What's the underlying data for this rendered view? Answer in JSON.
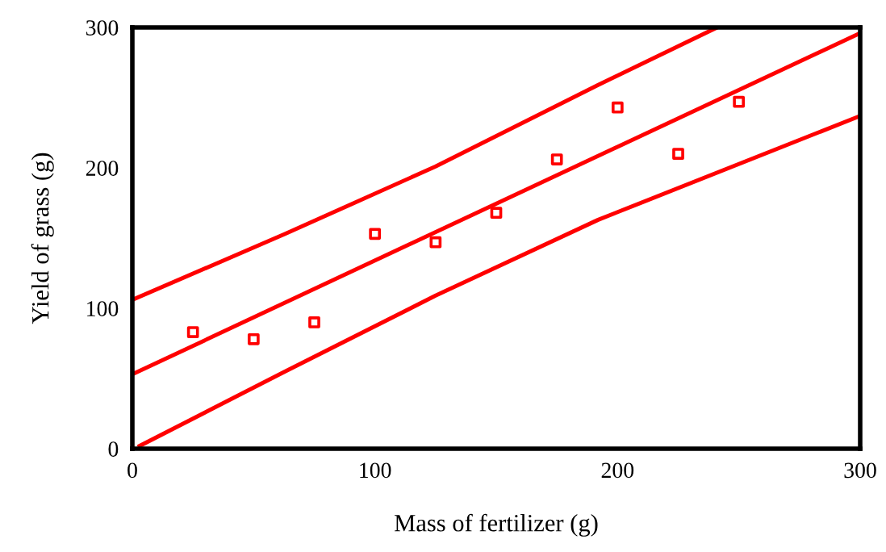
{
  "chart_data": {
    "type": "scatter",
    "xlabel": "Mass of fertilizer (g)",
    "ylabel": "Yield of grass (g)",
    "xlim": [
      0,
      300
    ],
    "ylim": [
      0,
      300
    ],
    "xticks": [
      0,
      100,
      200,
      300
    ],
    "yticks": [
      0,
      100,
      200,
      300
    ],
    "grid": false,
    "series": [
      {
        "marker": "square",
        "color": "#ff0000",
        "x": [
          25,
          50,
          75,
          100,
          125,
          150,
          175,
          200,
          225,
          250
        ],
        "values": [
          83,
          78,
          90,
          153,
          147,
          168,
          206,
          243,
          210,
          247
        ]
      },
      {
        "type": "line",
        "marker": "none",
        "color": "#ff0000",
        "x": [
          0,
          300
        ],
        "values": [
          53,
          296
        ]
      },
      {
        "type": "line",
        "marker": "none",
        "color": "#ff0000",
        "x": [
          0,
          63,
          125,
          192,
          241
        ],
        "values": [
          106,
          153,
          201,
          259,
          300
        ]
      },
      {
        "type": "line",
        "marker": "none",
        "color": "#ff0000",
        "x": [
          3,
          63,
          125,
          192,
          300
        ],
        "values": [
          2,
          55,
          109,
          163,
          237
        ]
      }
    ]
  }
}
